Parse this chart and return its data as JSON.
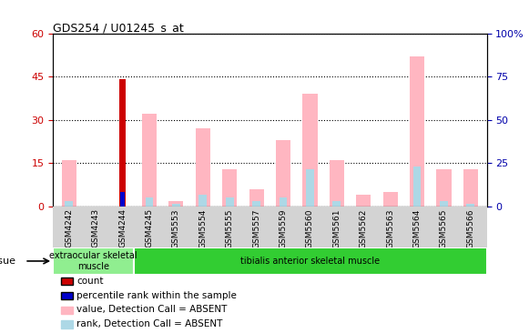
{
  "title": "GDS254 / U01245_s_at",
  "samples": [
    "GSM4242",
    "GSM4243",
    "GSM4244",
    "GSM4245",
    "GSM5553",
    "GSM5554",
    "GSM5555",
    "GSM5557",
    "GSM5559",
    "GSM5560",
    "GSM5561",
    "GSM5562",
    "GSM5563",
    "GSM5564",
    "GSM5565",
    "GSM5566"
  ],
  "count_values": [
    0,
    0,
    44,
    0,
    0,
    0,
    0,
    0,
    0,
    0,
    0,
    0,
    0,
    0,
    0,
    0
  ],
  "percentile_rank": [
    0,
    0,
    5,
    0,
    0,
    0,
    0,
    0,
    0,
    0,
    0,
    0,
    0,
    0,
    0,
    0
  ],
  "value_absent": [
    16,
    0,
    0,
    32,
    2,
    27,
    13,
    6,
    23,
    39,
    16,
    4,
    5,
    52,
    13,
    13
  ],
  "rank_absent": [
    2,
    0,
    0,
    3,
    1,
    4,
    3,
    2,
    3,
    13,
    2,
    0,
    0,
    14,
    2,
    1
  ],
  "ylim_left": [
    0,
    60
  ],
  "ylim_right": [
    0,
    100
  ],
  "yticks_left": [
    0,
    15,
    30,
    45,
    60
  ],
  "yticks_right": [
    0,
    25,
    50,
    75,
    100
  ],
  "yticklabels_right": [
    "0",
    "25",
    "50",
    "75",
    "100%"
  ],
  "tissue_groups": [
    {
      "label": "extraocular skeletal\nmuscle",
      "start": 0,
      "end": 3,
      "color": "#90ee90"
    },
    {
      "label": "tibialis anterior skeletal muscle",
      "start": 3,
      "end": 16,
      "color": "#32cd32"
    }
  ],
  "legend_items": [
    {
      "label": "count",
      "color": "#cc0000"
    },
    {
      "label": "percentile rank within the sample",
      "color": "#0000cc"
    },
    {
      "label": "value, Detection Call = ABSENT",
      "color": "#ffb6c1"
    },
    {
      "label": "rank, Detection Call = ABSENT",
      "color": "#add8e6"
    }
  ],
  "color_count": "#cc0000",
  "color_percentile": "#0000cc",
  "color_value_absent": "#ffb6c1",
  "color_rank_absent": "#add8e6",
  "left_tick_color": "#cc0000",
  "right_tick_color": "#0000aa"
}
